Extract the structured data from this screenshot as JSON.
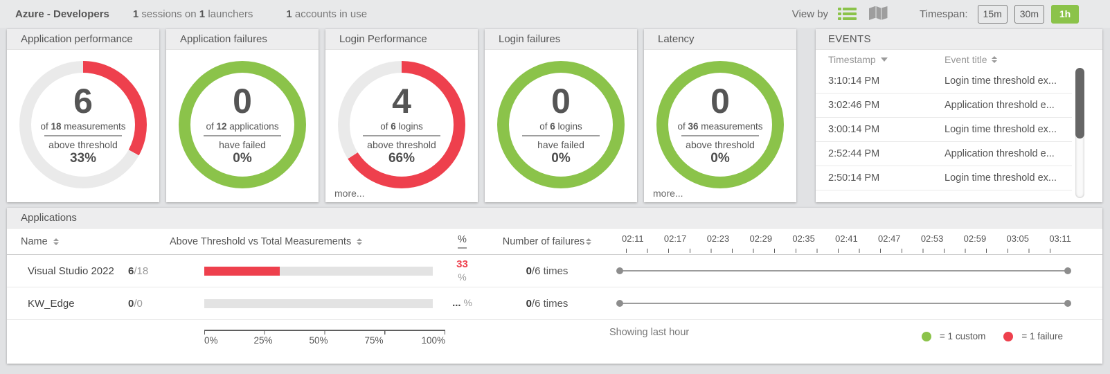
{
  "topbar": {
    "title": "Azure - Developers",
    "sessions_count": "1",
    "sessions_label": "sessions on",
    "launchers_count": "1",
    "launchers_label": "launchers",
    "accounts_count": "1",
    "accounts_label": "accounts in use",
    "view_by_label": "View by",
    "timespan_label": "Timespan:",
    "timespan_options": [
      "15m",
      "30m",
      "1h"
    ],
    "timespan_selected": "1h"
  },
  "colors": {
    "green": "#8bc34a",
    "red": "#ee404d",
    "ring_gray": "#eaeaea"
  },
  "gauges": [
    {
      "title": "Application performance",
      "value": "6",
      "of_prefix": "of",
      "of_count": "18",
      "of_unit": "measurements",
      "status": "above threshold",
      "percent": "33%",
      "arc_pct": 33,
      "arc_color": "#ee404d",
      "more": ""
    },
    {
      "title": "Application failures",
      "value": "0",
      "of_prefix": "of",
      "of_count": "12",
      "of_unit": "applications",
      "status": "have failed",
      "percent": "0%",
      "arc_pct": 100,
      "arc_color": "#8bc34a",
      "more": ""
    },
    {
      "title": "Login Performance",
      "value": "4",
      "of_prefix": "of",
      "of_count": "6",
      "of_unit": "logins",
      "status": "above threshold",
      "percent": "66%",
      "arc_pct": 66,
      "arc_color": "#ee404d",
      "more": "more..."
    },
    {
      "title": "Login failures",
      "value": "0",
      "of_prefix": "of",
      "of_count": "6",
      "of_unit": "logins",
      "status": "have failed",
      "percent": "0%",
      "arc_pct": 100,
      "arc_color": "#8bc34a",
      "more": ""
    },
    {
      "title": "Latency",
      "value": "0",
      "of_prefix": "of",
      "of_count": "36",
      "of_unit": "measurements",
      "status": "above threshold",
      "percent": "0%",
      "arc_pct": 100,
      "arc_color": "#8bc34a",
      "more": "more..."
    }
  ],
  "events": {
    "title": "EVENTS",
    "columns": {
      "timestamp": "Timestamp",
      "event_title": "Event title"
    },
    "rows": [
      {
        "time": "3:10:14 PM",
        "title": "Login time threshold ex..."
      },
      {
        "time": "3:02:46 PM",
        "title": "Application threshold e..."
      },
      {
        "time": "3:00:14 PM",
        "title": "Login time threshold ex..."
      },
      {
        "time": "2:52:44 PM",
        "title": "Application threshold e..."
      },
      {
        "time": "2:50:14 PM",
        "title": "Login time threshold ex..."
      }
    ]
  },
  "applications": {
    "title": "Applications",
    "columns": {
      "name": "Name",
      "threshold": "Above Threshold vs Total Measurements",
      "percent": "%",
      "failures": "Number of failures"
    },
    "rows": [
      {
        "name": "Visual Studio 2022",
        "above": "6",
        "total": "/18",
        "bar_pct": 33,
        "pct_value": "33",
        "pct_unit": "%",
        "failures_value": "0",
        "failures_rest": "/6 times"
      },
      {
        "name": "KW_Edge",
        "above": "0",
        "total": "/0",
        "bar_pct": 0,
        "pct_value": "...",
        "pct_unit": " %",
        "failures_value": "0",
        "failures_rest": "/6 times"
      }
    ],
    "axis_labels": [
      "0%",
      "25%",
      "50%",
      "75%",
      "100%"
    ],
    "timeline_ticks": [
      "02:11",
      "02:17",
      "02:23",
      "02:29",
      "02:35",
      "02:41",
      "02:47",
      "02:53",
      "02:59",
      "03:05",
      "03:11"
    ],
    "footer_note": "Showing last hour",
    "legend": [
      {
        "color": "#8bc34a",
        "label": "= 1 custom"
      },
      {
        "color": "#ee404d",
        "label": "= 1 failure"
      }
    ]
  }
}
